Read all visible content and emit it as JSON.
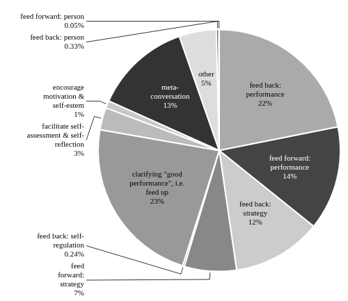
{
  "chart_data": {
    "type": "pie",
    "categories": [
      "feed back:\nperformance\n22%",
      "feed forward:\nperformance\n14%",
      "feed back:\nstrategy\n12%",
      "feed\nforward:\nstrategy\n7%",
      "feed back: self-\nregulation\n0.24%",
      "clarifying \"good\nperformance\", i.e.\nfeed up\n23%",
      "facilitate self-\nassessment & self-\nreflection\n3%",
      "encourage\nmotivation &\nself-estem\n1%",
      "meta-\nconversation\n13%",
      "other\n5%",
      "feed back: person\n0.33%",
      "feed forward: person\n0.05%"
    ],
    "values": [
      22,
      14,
      12,
      7,
      0.24,
      23,
      3,
      1,
      13,
      5,
      0.33,
      0.05
    ],
    "colors": [
      "#aaaaaa",
      "#444444",
      "#cccccc",
      "#888888",
      "#777777",
      "#999999",
      "#bbbbbb",
      "#c8c8c8",
      "#333333",
      "#dddddd",
      "#555555",
      "#eeeeee"
    ]
  }
}
